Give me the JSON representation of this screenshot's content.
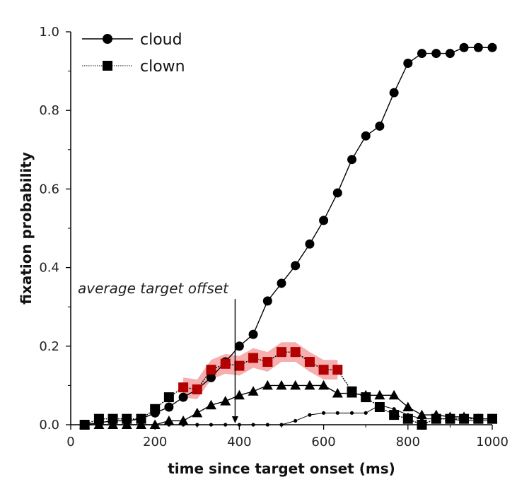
{
  "chart_data": {
    "type": "line",
    "xlabel": "time since target onset (ms)",
    "ylabel": "fixation probability",
    "xlim": [
      0,
      1000
    ],
    "ylim": [
      0,
      1.0
    ],
    "x_ticks": [
      0,
      200,
      400,
      600,
      800,
      1000
    ],
    "y_ticks": [
      0.0,
      0.2,
      0.4,
      0.6,
      0.8,
      1.0
    ],
    "x_tick_labels": [
      "0",
      "200",
      "400",
      "600",
      "800",
      "1000"
    ],
    "y_tick_labels": [
      "0.0",
      "0.2",
      "0.4",
      "0.6",
      "0.8",
      "1.0"
    ],
    "grid": false,
    "legend_position": "top-left",
    "series": [
      {
        "name": "cloud",
        "marker": "circle",
        "color": "#000000",
        "x": [
          33,
          67,
          100,
          133,
          167,
          200,
          233,
          267,
          300,
          333,
          367,
          400,
          433,
          467,
          500,
          533,
          567,
          600,
          633,
          667,
          700,
          733,
          767,
          800,
          833,
          867,
          900,
          933,
          967,
          1000
        ],
        "y": [
          0.0,
          0.005,
          0.01,
          0.01,
          0.015,
          0.03,
          0.045,
          0.07,
          0.09,
          0.12,
          0.16,
          0.2,
          0.23,
          0.315,
          0.36,
          0.405,
          0.46,
          0.52,
          0.59,
          0.675,
          0.735,
          0.76,
          0.845,
          0.92,
          0.945,
          0.945,
          0.945,
          0.96,
          0.96,
          0.96
        ]
      },
      {
        "name": "clown",
        "marker": "square",
        "color": "#000000",
        "highlight_color": "#b30000",
        "band_color": "#f4a0a0",
        "x": [
          33,
          67,
          100,
          133,
          167,
          200,
          233,
          267,
          300,
          333,
          367,
          400,
          433,
          467,
          500,
          533,
          567,
          600,
          633,
          667,
          700,
          733,
          767,
          800,
          833,
          867,
          900,
          933,
          967,
          1000
        ],
        "y": [
          0.0,
          0.015,
          0.015,
          0.015,
          0.015,
          0.04,
          0.07,
          0.095,
          0.09,
          0.14,
          0.155,
          0.15,
          0.17,
          0.16,
          0.185,
          0.185,
          0.16,
          0.14,
          0.14,
          0.085,
          0.07,
          0.045,
          0.025,
          0.015,
          0.0,
          0.015,
          0.015,
          0.015,
          0.015,
          0.015
        ],
        "highlight_range": [
          267,
          633
        ],
        "band_half_width": 0.025
      },
      {
        "marker": "triangle",
        "color": "#000000",
        "x": [
          33,
          67,
          100,
          133,
          167,
          200,
          233,
          267,
          300,
          333,
          367,
          400,
          433,
          467,
          500,
          533,
          567,
          600,
          633,
          667,
          700,
          733,
          767,
          800,
          833,
          867,
          900,
          933,
          967,
          1000
        ],
        "y": [
          0.0,
          0.0,
          0.0,
          0.0,
          0.0,
          0.0,
          0.01,
          0.01,
          0.03,
          0.05,
          0.06,
          0.075,
          0.085,
          0.1,
          0.1,
          0.1,
          0.1,
          0.1,
          0.08,
          0.08,
          0.075,
          0.075,
          0.075,
          0.045,
          0.025,
          0.025,
          0.02,
          0.02,
          0.015,
          0.015
        ]
      },
      {
        "marker": "small-dot",
        "color": "#000000",
        "x": [
          33,
          67,
          100,
          133,
          167,
          200,
          233,
          267,
          300,
          333,
          367,
          400,
          433,
          467,
          500,
          533,
          567,
          600,
          633,
          667,
          700,
          733,
          767,
          800,
          833,
          867,
          900,
          933,
          967,
          1000
        ],
        "y": [
          0.0,
          0.0,
          0.0,
          0.0,
          0.0,
          0.0,
          0.0,
          0.0,
          0.0,
          0.0,
          0.0,
          0.0,
          0.0,
          0.0,
          0.0,
          0.01,
          0.025,
          0.03,
          0.03,
          0.03,
          0.03,
          0.05,
          0.04,
          0.025,
          0.015,
          0.015,
          0.015,
          0.01,
          0.01,
          0.01
        ]
      }
    ],
    "annotation": {
      "text": "average target offset",
      "x": 390,
      "arrow_from_y": 0.32,
      "arrow_to_y": 0.0
    }
  }
}
